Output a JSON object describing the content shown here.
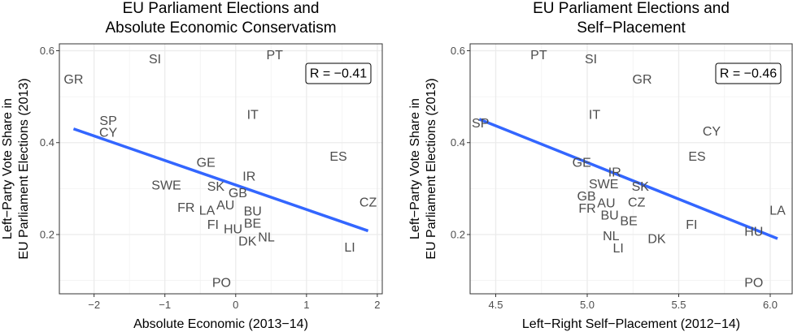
{
  "chart_data": [
    {
      "type": "scatter",
      "title_lines": [
        "EU Parliament Elections and",
        "Absolute Economic Conservatism"
      ],
      "xlabel": "Absolute Economic (2013−14)",
      "ylabel_lines": [
        "Left−Party Vote Share in",
        "EU Parliament Elections (2013)"
      ],
      "xlim": [
        -2.49,
        2.07
      ],
      "ylim": [
        0.071,
        0.615
      ],
      "xticks": [
        -2,
        -1,
        0,
        1,
        2
      ],
      "xtick_labels": [
        "−2",
        "−1",
        "0",
        "1",
        "2"
      ],
      "xminor": [
        -1.5,
        -0.5,
        0.5,
        1.5
      ],
      "yticks": [
        0.2,
        0.4,
        0.6
      ],
      "ytick_labels": [
        "0.2",
        "0.4",
        "0.6"
      ],
      "yminor": [
        0.1,
        0.3,
        0.5
      ],
      "grid": true,
      "annotation": "R = −0.41",
      "annotation_placement": "top-right",
      "fit_line": {
        "x": [
          -2.29,
          1.87
        ],
        "y": [
          0.43,
          0.208
        ],
        "color": "#3366ff"
      },
      "points": [
        {
          "label": "GR",
          "x": -2.29,
          "y": 0.536
        },
        {
          "label": "SI",
          "x": -1.14,
          "y": 0.581
        },
        {
          "label": "PT",
          "x": 0.55,
          "y": 0.589
        },
        {
          "label": "SP",
          "x": -1.8,
          "y": 0.444
        },
        {
          "label": "CY",
          "x": -1.8,
          "y": 0.423
        },
        {
          "label": "IT",
          "x": 0.24,
          "y": 0.46
        },
        {
          "label": "ES",
          "x": 1.45,
          "y": 0.369
        },
        {
          "label": "GE",
          "x": -0.42,
          "y": 0.355
        },
        {
          "label": "IR",
          "x": 0.19,
          "y": 0.325
        },
        {
          "label": "SWE",
          "x": -0.98,
          "y": 0.306
        },
        {
          "label": "SK",
          "x": -0.28,
          "y": 0.303
        },
        {
          "label": "GB",
          "x": 0.03,
          "y": 0.288
        },
        {
          "label": "CZ",
          "x": 1.87,
          "y": 0.269
        },
        {
          "label": "FR",
          "x": -0.7,
          "y": 0.257
        },
        {
          "label": "LA",
          "x": -0.39,
          "y": 0.251
        },
        {
          "label": "AU",
          "x": -0.16,
          "y": 0.263
        },
        {
          "label": "BU",
          "x": 0.24,
          "y": 0.246
        },
        {
          "label": "BE",
          "x": 0.23,
          "y": 0.226
        },
        {
          "label": "FI",
          "x": -0.32,
          "y": 0.22
        },
        {
          "label": "HU",
          "x": -0.03,
          "y": 0.205
        },
        {
          "label": "DK",
          "x": 0.17,
          "y": 0.189
        },
        {
          "label": "NL",
          "x": 0.43,
          "y": 0.193
        },
        {
          "label": "LI",
          "x": 1.61,
          "y": 0.171
        },
        {
          "label": "PO",
          "x": -0.2,
          "y": 0.094
        }
      ]
    },
    {
      "type": "scatter",
      "title_lines": [
        "EU Parliament Elections and",
        "Self−Placement"
      ],
      "xlabel": "Left−Right Self−Placement (2012−14)",
      "ylabel_lines": [
        "Left−Party Vote Share in",
        "EU Parliament Elections (2013)"
      ],
      "xlim": [
        4.36,
        6.12
      ],
      "ylim": [
        0.071,
        0.615
      ],
      "xticks": [
        4.5,
        5.0,
        5.5,
        6.0
      ],
      "xtick_labels": [
        "4.5",
        "5.0",
        "5.5",
        "6.0"
      ],
      "xminor": [
        4.75,
        5.25,
        5.75
      ],
      "yticks": [
        0.2,
        0.4,
        0.6
      ],
      "ytick_labels": [
        "0.2",
        "0.4",
        "0.6"
      ],
      "yminor": [
        0.1,
        0.3,
        0.5
      ],
      "grid": true,
      "annotation": "R = −0.46",
      "annotation_placement": "top-right",
      "fit_line": {
        "x": [
          4.41,
          6.04
        ],
        "y": [
          0.451,
          0.191
        ],
        "color": "#3366ff"
      },
      "points": [
        {
          "label": "PT",
          "x": 4.735,
          "y": 0.589
        },
        {
          "label": "SI",
          "x": 5.02,
          "y": 0.581
        },
        {
          "label": "GR",
          "x": 5.3,
          "y": 0.536
        },
        {
          "label": "IT",
          "x": 5.04,
          "y": 0.46
        },
        {
          "label": "SP",
          "x": 4.39,
          "y": 0.441
        },
        {
          "label": "CY",
          "x": 5.68,
          "y": 0.423
        },
        {
          "label": "ES",
          "x": 5.6,
          "y": 0.369
        },
        {
          "label": "GE",
          "x": 4.97,
          "y": 0.355
        },
        {
          "label": "IR",
          "x": 5.15,
          "y": 0.329
        },
        {
          "label": "SWE",
          "x": 5.09,
          "y": 0.306
        },
        {
          "label": "SK",
          "x": 5.29,
          "y": 0.303
        },
        {
          "label": "GB",
          "x": 5.0,
          "y": 0.288
        },
        {
          "label": "CZ",
          "x": 5.27,
          "y": 0.269
        },
        {
          "label": "FR",
          "x": 5.0,
          "y": 0.257
        },
        {
          "label": "AU",
          "x": 5.1,
          "y": 0.263
        },
        {
          "label": "BU",
          "x": 5.13,
          "y": 0.244
        },
        {
          "label": "LA",
          "x": 6.04,
          "y": 0.251
        },
        {
          "label": "BE",
          "x": 5.22,
          "y": 0.228
        },
        {
          "label": "FI",
          "x": 5.57,
          "y": 0.22
        },
        {
          "label": "HU",
          "x": 5.91,
          "y": 0.205
        },
        {
          "label": "DK",
          "x": 5.38,
          "y": 0.189
        },
        {
          "label": "NL",
          "x": 5.13,
          "y": 0.193
        },
        {
          "label": "LI",
          "x": 5.17,
          "y": 0.171
        },
        {
          "label": "PO",
          "x": 5.91,
          "y": 0.094
        }
      ]
    }
  ]
}
